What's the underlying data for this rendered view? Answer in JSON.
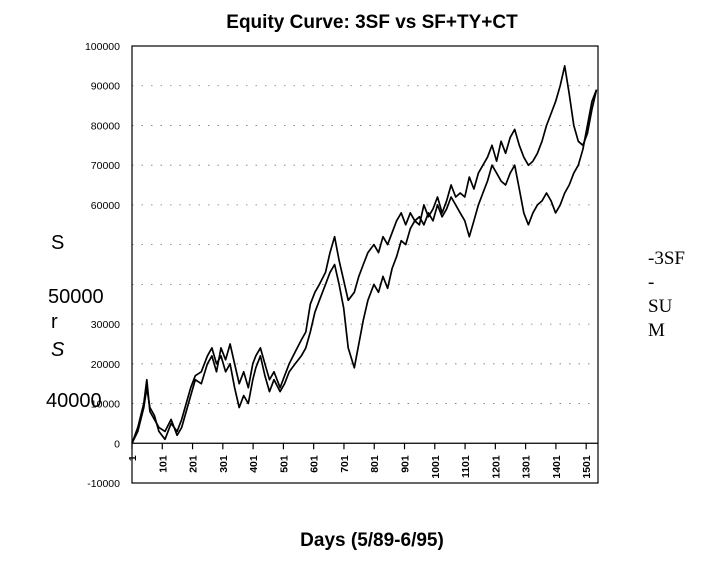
{
  "chart_data": {
    "type": "line",
    "title": "Equity Curve: 3SF vs SF+TY+CT",
    "xlabel": "Days (5/89-6/95)",
    "ylabel_fragments": [
      "S",
      "50000",
      "r",
      "S",
      "40000"
    ],
    "ylim": [
      -10000,
      100000
    ],
    "xlim": [
      1,
      1540
    ],
    "yticks": [
      {
        "value": 100000,
        "label": "100000"
      },
      {
        "value": 90000,
        "label": "90000"
      },
      {
        "value": 80000,
        "label": "80000"
      },
      {
        "value": 70000,
        "label": "70000"
      },
      {
        "value": 60000,
        "label": "60000"
      },
      {
        "value": 30000,
        "label": "30000"
      },
      {
        "value": 20000,
        "label": "20000"
      },
      {
        "value": 10000,
        "label": "10000"
      },
      {
        "value": 0,
        "label": "0"
      },
      {
        "value": -10000,
        "label": "-10000"
      }
    ],
    "ygrid_values": [
      100000,
      90000,
      80000,
      70000,
      60000,
      50000,
      40000,
      30000,
      20000,
      10000
    ],
    "xticks": [
      1,
      101,
      201,
      301,
      401,
      501,
      601,
      701,
      801,
      901,
      1001,
      1101,
      1201,
      1301,
      1401,
      1501
    ],
    "grid": true,
    "legend_position": "right",
    "legend_lines": [
      "-3SF",
      "-",
      "SU",
      "M"
    ],
    "series": [
      {
        "x": [
          1,
          20,
          40,
          50,
          60,
          75,
          90,
          110,
          130,
          150,
          165,
          180,
          195,
          210,
          230,
          250,
          265,
          280,
          295,
          310,
          325,
          340,
          355,
          370,
          385,
          400,
          410,
          425,
          440,
          455,
          470,
          490,
          505,
          520,
          540,
          560,
          575,
          590,
          605,
          620,
          640,
          655,
          670,
          685,
          700,
          715,
          735,
          750,
          765,
          780,
          800,
          815,
          830,
          845,
          860,
          875,
          890,
          905,
          920,
          935,
          950,
          965,
          980,
          995,
          1010,
          1025,
          1040,
          1055,
          1070,
          1085,
          1100,
          1115,
          1130,
          1145,
          1160,
          1175,
          1190,
          1205,
          1220,
          1235,
          1250,
          1265,
          1280,
          1295,
          1310,
          1325,
          1340,
          1355,
          1370,
          1385,
          1400,
          1415,
          1430,
          1445,
          1460,
          1475,
          1490,
          1505,
          1520,
          1535
        ],
        "values": [
          0,
          4000,
          10000,
          16000,
          8000,
          6000,
          4000,
          3000,
          6000,
          2000,
          4000,
          8000,
          12000,
          16000,
          15000,
          20000,
          22000,
          18000,
          24000,
          21000,
          25000,
          20000,
          15000,
          18000,
          14000,
          20000,
          22000,
          24000,
          20000,
          16000,
          18000,
          14000,
          17000,
          20000,
          23000,
          26000,
          28000,
          35000,
          38000,
          40000,
          43000,
          48000,
          52000,
          46000,
          41000,
          36000,
          38000,
          42000,
          45000,
          48000,
          50000,
          48000,
          52000,
          50000,
          53000,
          56000,
          58000,
          55000,
          58000,
          56000,
          55000,
          60000,
          57000,
          59000,
          62000,
          58000,
          61000,
          65000,
          62000,
          63000,
          62000,
          67000,
          64000,
          68000,
          70000,
          72000,
          75000,
          71000,
          76000,
          73000,
          77000,
          79000,
          75000,
          72000,
          70000,
          71000,
          73000,
          76000,
          80000,
          83000,
          86000,
          90000,
          95000,
          88000,
          80000,
          76000,
          75000,
          78000,
          84000,
          89000
        ]
      },
      {
        "x": [
          1,
          20,
          40,
          50,
          60,
          75,
          90,
          110,
          130,
          150,
          165,
          180,
          195,
          210,
          230,
          250,
          265,
          280,
          295,
          310,
          325,
          340,
          355,
          370,
          385,
          400,
          410,
          425,
          440,
          455,
          470,
          490,
          505,
          520,
          540,
          560,
          575,
          590,
          605,
          620,
          640,
          655,
          670,
          685,
          700,
          715,
          735,
          750,
          765,
          780,
          800,
          815,
          830,
          845,
          860,
          875,
          890,
          905,
          920,
          935,
          950,
          965,
          980,
          995,
          1010,
          1025,
          1040,
          1055,
          1070,
          1085,
          1100,
          1115,
          1130,
          1145,
          1160,
          1175,
          1190,
          1205,
          1220,
          1235,
          1250,
          1265,
          1280,
          1295,
          1310,
          1325,
          1340,
          1355,
          1370,
          1385,
          1400,
          1415,
          1430,
          1445,
          1460,
          1475,
          1490,
          1505,
          1520,
          1535
        ],
        "values": [
          0,
          3000,
          9000,
          14000,
          9000,
          7000,
          3000,
          1000,
          5000,
          3000,
          6000,
          10000,
          14000,
          17000,
          18000,
          22000,
          24000,
          20000,
          22000,
          18000,
          20000,
          14000,
          9000,
          12000,
          10000,
          16000,
          19000,
          22000,
          17000,
          13000,
          16000,
          13000,
          15000,
          18000,
          20000,
          22000,
          24000,
          28000,
          33000,
          36000,
          40000,
          43000,
          45000,
          40000,
          34000,
          24000,
          19000,
          25000,
          31000,
          36000,
          40000,
          38000,
          42000,
          39000,
          44000,
          47000,
          51000,
          50000,
          54000,
          56000,
          57000,
          55000,
          58000,
          56000,
          60000,
          57000,
          59000,
          62000,
          60000,
          58000,
          56000,
          52000,
          56000,
          60000,
          63000,
          66000,
          70000,
          68000,
          66000,
          65000,
          68000,
          70000,
          64000,
          58000,
          55000,
          58000,
          60000,
          61000,
          63000,
          61000,
          58000,
          60000,
          63000,
          65000,
          68000,
          70000,
          74000,
          80000,
          86000,
          89000
        ]
      }
    ]
  }
}
